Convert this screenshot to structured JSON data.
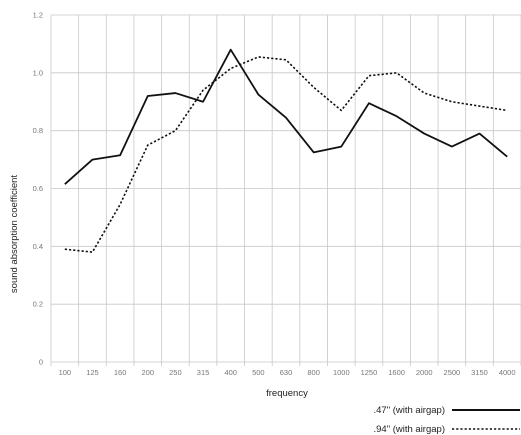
{
  "chart_data": {
    "type": "line",
    "title": "",
    "xlabel": "frequency",
    "ylabel": "sound absorption coefficient",
    "categories": [
      "100",
      "125",
      "160",
      "200",
      "250",
      "315",
      "400",
      "500",
      "630",
      "800",
      "1000",
      "1250",
      "1600",
      "2000",
      "2500",
      "3150",
      "4000"
    ],
    "ylim": [
      0,
      1.2
    ],
    "yticks": [
      "0",
      "0.2",
      "0.4",
      "0.6",
      "0.8",
      "1.0",
      "1.2"
    ],
    "grid": true,
    "legend_position": "bottom-right",
    "series": [
      {
        "name": ".47\" (with airgap)",
        "style": "solid",
        "color": "#111111",
        "values": [
          0.615,
          0.7,
          0.715,
          0.92,
          0.93,
          0.9,
          1.08,
          0.925,
          0.845,
          0.725,
          0.745,
          0.895,
          0.85,
          0.79,
          0.745,
          0.79,
          0.71
        ]
      },
      {
        "name": ".94\" (with airgap)",
        "style": "dotted",
        "color": "#111111",
        "values": [
          0.39,
          0.38,
          0.545,
          0.75,
          0.8,
          0.94,
          1.015,
          1.055,
          1.045,
          0.95,
          0.87,
          0.99,
          1.0,
          0.93,
          0.9,
          0.885,
          0.87
        ]
      }
    ]
  }
}
